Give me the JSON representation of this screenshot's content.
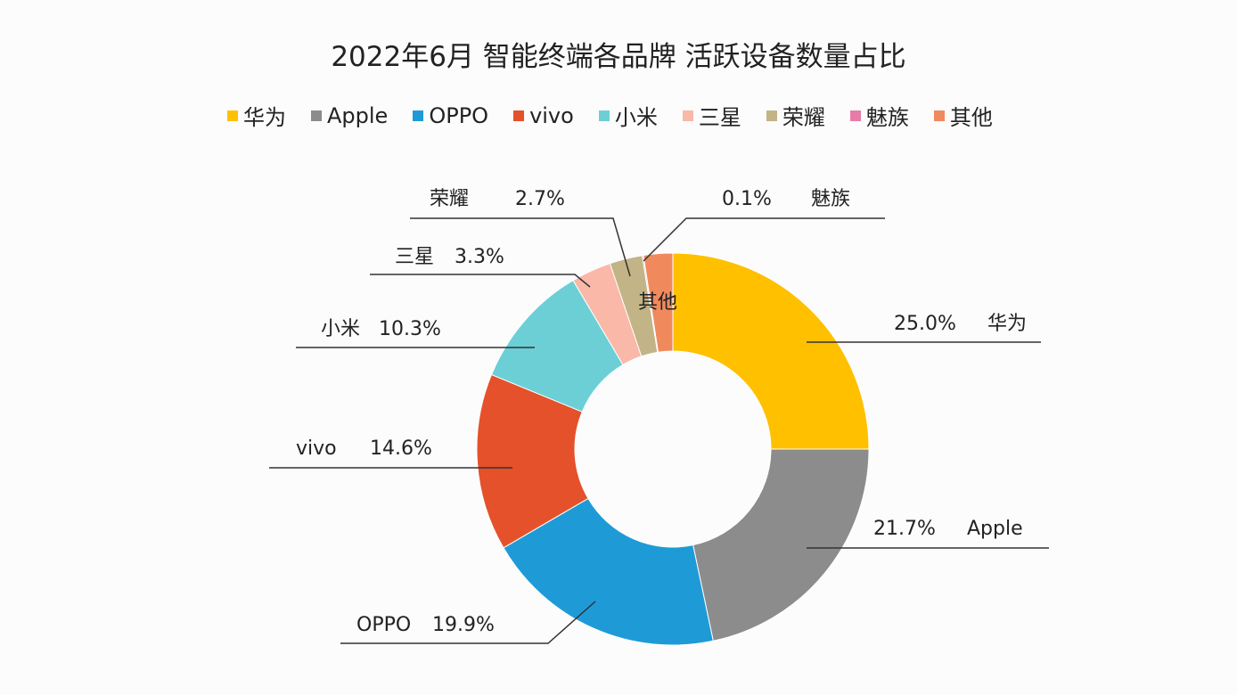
{
  "chart_data": {
    "type": "pie",
    "title": "2022年6月 智能终端各品牌 活跃设备数量占比",
    "donut": true,
    "legend_position": "top",
    "categories": [
      "华为",
      "Apple",
      "OPPO",
      "vivo",
      "小米",
      "三星",
      "荣耀",
      "魅族",
      "其他"
    ],
    "values": [
      25.0,
      21.7,
      19.9,
      14.6,
      10.3,
      3.3,
      2.7,
      0.1,
      2.4
    ],
    "data_labels": [
      "25.0%",
      "21.7%",
      "19.9%",
      "14.6%",
      "10.3%",
      "3.3%",
      "2.7%",
      "0.1%",
      ""
    ],
    "colors": [
      "#FFC000",
      "#8C8C8C",
      "#1E9BD7",
      "#E4512B",
      "#6CCFD6",
      "#F9B8A8",
      "#C2B486",
      "#E87BA8",
      "#F08A5D"
    ]
  }
}
